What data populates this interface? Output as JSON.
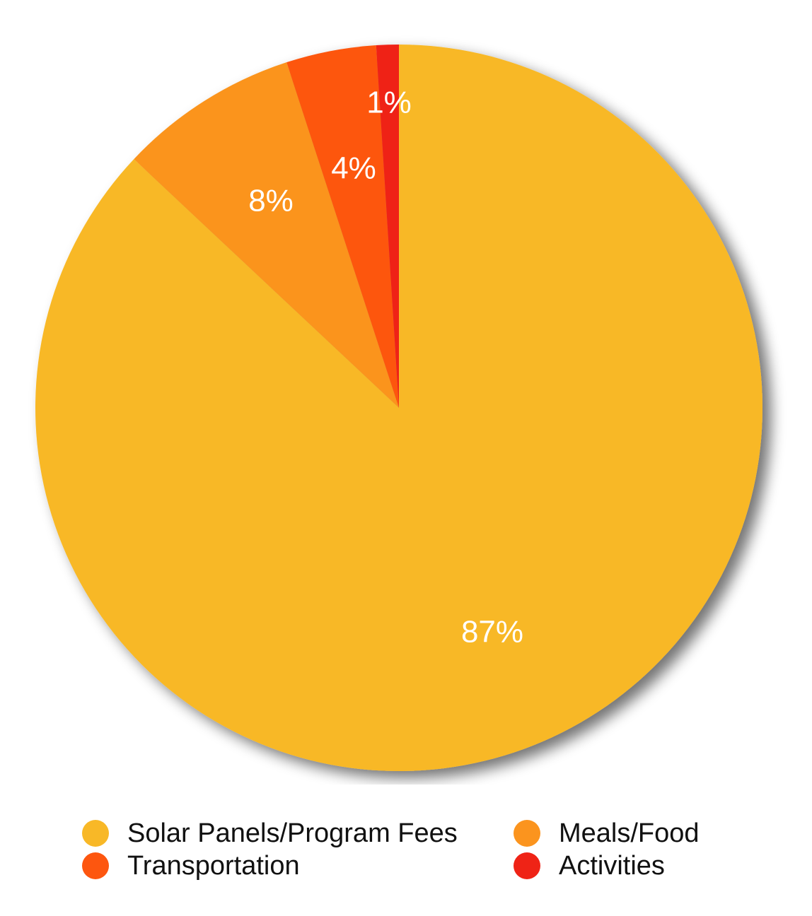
{
  "chart_data": {
    "type": "pie",
    "start_angle_deg": 0,
    "direction": "clockwise",
    "slices": [
      {
        "name": "Solar Panels/Program Fees",
        "value": 87,
        "label": "87%",
        "color": "#F8B827"
      },
      {
        "name": "Meals/Food",
        "value": 8,
        "label": "8%",
        "color": "#FB941E"
      },
      {
        "name": "Transportation",
        "value": 4,
        "label": "4%",
        "color": "#FD560F"
      },
      {
        "name": "Activities",
        "value": 1,
        "label": "1%",
        "color": "#EF2316"
      }
    ],
    "legend_position": "bottom"
  }
}
